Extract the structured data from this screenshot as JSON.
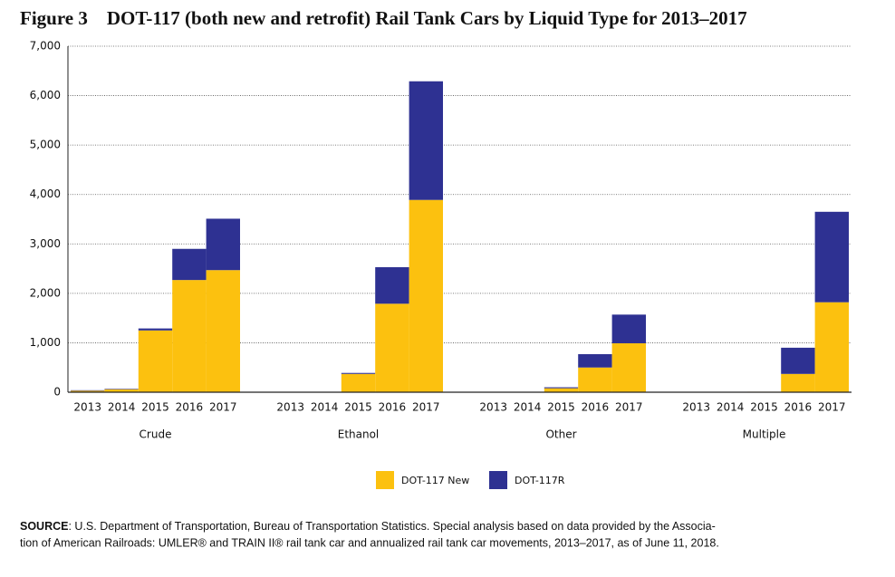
{
  "chart_data": {
    "type": "grouped-stacked-bar",
    "title": "Figure 3    DOT-117 (both new and retrofit) Rail Tank Cars by Liquid Type for 2013–2017",
    "groups": [
      "Crude",
      "Ethanol",
      "Other",
      "Multiple"
    ],
    "categories": [
      "2013",
      "2014",
      "2015",
      "2016",
      "2017"
    ],
    "series": [
      {
        "name": "DOT-117 New",
        "color": "#fcc10f",
        "values": [
          [
            30,
            60,
            1250,
            2270,
            2470
          ],
          [
            0,
            0,
            370,
            1790,
            3890
          ],
          [
            0,
            0,
            80,
            500,
            990
          ],
          [
            0,
            0,
            10,
            370,
            1820
          ]
        ]
      },
      {
        "name": "DOT-117R",
        "color": "#2e3192",
        "values": [
          [
            10,
            10,
            40,
            630,
            1040
          ],
          [
            0,
            0,
            20,
            740,
            2400
          ],
          [
            0,
            0,
            20,
            270,
            580
          ],
          [
            0,
            0,
            0,
            530,
            1830
          ]
        ]
      }
    ],
    "ylim": [
      0,
      7000
    ],
    "yticks": [
      0,
      {
        "value": 1000,
        "label": "1,000"
      },
      {
        "value": 2000,
        "label": "2,000"
      },
      {
        "value": 3000,
        "label": "3,000"
      },
      {
        "value": 4000,
        "label": "4,000"
      },
      {
        "value": 5000,
        "label": "5,000"
      },
      {
        "value": 6000,
        "label": "6,000"
      },
      {
        "value": 7000,
        "label": "7,000"
      }
    ],
    "grid": true,
    "legend": "bottom",
    "source": {
      "label": "SOURCE",
      "lines": [
        ": U.S. Department of Transportation, Bureau of Transportation Statistics.  Special analysis based on data provided by the Associa-",
        "tion of American Railroads: UMLER® and TRAIN II® rail tank car and annualized rail tank car movements, 2013–2017, as of June 11, 2018."
      ]
    }
  }
}
